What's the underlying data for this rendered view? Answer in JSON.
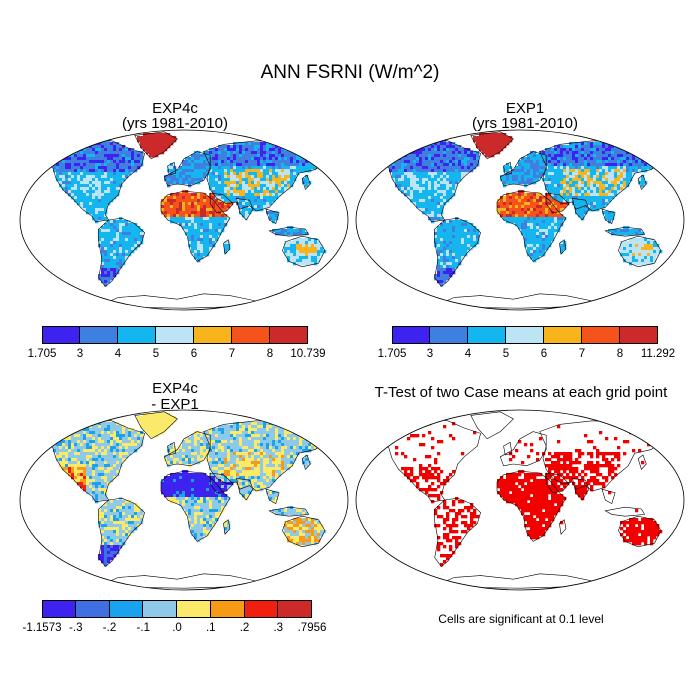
{
  "main_title": "ANN FSRNI (W/m^2)",
  "panels": [
    {
      "title": "EXP4c",
      "subtitle": "(yrs 1981-2010)",
      "palette": [
        "#3d22f0",
        "#3f7fe0",
        "#15b6f0",
        "#bce4f4",
        "#f7b41c",
        "#f5521c",
        "#cc2a2a"
      ],
      "colorbar_labels": [
        "1.705",
        "3",
        "4",
        "5",
        "6",
        "7",
        "8",
        "10.739"
      ]
    },
    {
      "title": "EXP1",
      "subtitle": "(yrs 1981-2010)",
      "palette": [
        "#3d22f0",
        "#3f7fe0",
        "#15b6f0",
        "#bce4f4",
        "#f7b41c",
        "#f5521c",
        "#cc2a2a"
      ],
      "colorbar_labels": [
        "1.705",
        "3",
        "4",
        "5",
        "6",
        "7",
        "8",
        "11.292"
      ]
    },
    {
      "title": "EXP4c",
      "subtitle": "- EXP1",
      "palette": [
        "#3d22f0",
        "#3f6fe0",
        "#1aa2ee",
        "#8fc9ea",
        "#fbea6a",
        "#f79a16",
        "#f02010",
        "#cc2a2a"
      ],
      "colorbar_labels": [
        "-1.1573",
        "-.3",
        "-.2",
        "-.1",
        ".0",
        ".1",
        ".2",
        ".3",
        ".7956"
      ]
    },
    {
      "title": "T-Test of two Case means at each grid point",
      "note": "Cells are significant at 0.1 level",
      "significant_color": "#f20000"
    }
  ]
}
